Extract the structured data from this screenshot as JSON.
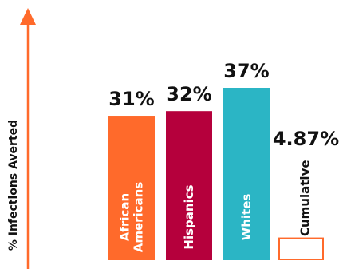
{
  "chart_data": {
    "type": "bar",
    "ylabel": "% Infections Averted",
    "categories": [
      {
        "lines": [
          "African",
          "Americans"
        ],
        "value": 31,
        "value_label": "31%",
        "color": "#ff6a2b",
        "style": "filled"
      },
      {
        "lines": [
          "Hispanics"
        ],
        "value": 32,
        "value_label": "32%",
        "color": "#b5003c",
        "style": "filled"
      },
      {
        "lines": [
          "Whites"
        ],
        "value": 37,
        "value_label": "37%",
        "color": "#2bb5c5",
        "style": "filled"
      },
      {
        "lines": [
          "Cumulative"
        ],
        "value": 4.87,
        "value_label": "4.87%",
        "color": "#ff6a2b",
        "style": "outline"
      }
    ],
    "ylim": [
      0,
      52
    ],
    "axis_color": "#ff6a2b",
    "grid": false,
    "legend": "none"
  }
}
